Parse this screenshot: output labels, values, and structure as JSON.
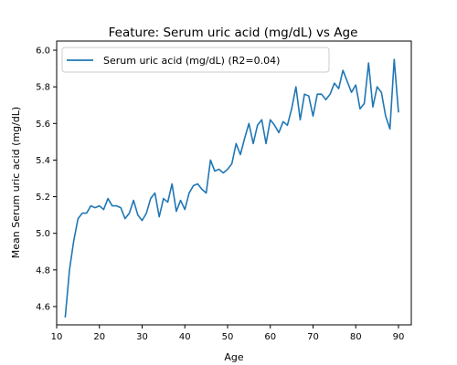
{
  "chart_data": {
    "type": "line",
    "title": "Feature: Serum uric acid (mg/dL) vs Age",
    "xlabel": "Age",
    "ylabel": "Mean Serum uric acid (mg/dL)",
    "xlim": [
      10,
      93
    ],
    "ylim": [
      4.5,
      6.05
    ],
    "xticks": [
      10,
      20,
      30,
      40,
      50,
      60,
      70,
      80,
      90
    ],
    "yticks": [
      4.6,
      4.8,
      5.0,
      5.2,
      5.4,
      5.6,
      5.8,
      6.0
    ],
    "grid": false,
    "legend_position": "top-left",
    "series": [
      {
        "name": "Serum uric acid (mg/dL) (R2=0.04)",
        "color": "#1f77b4",
        "x": [
          12,
          13,
          14,
          15,
          16,
          17,
          18,
          19,
          20,
          21,
          22,
          23,
          24,
          25,
          26,
          27,
          28,
          29,
          30,
          31,
          32,
          33,
          34,
          35,
          36,
          37,
          38,
          39,
          40,
          41,
          42,
          43,
          44,
          45,
          46,
          47,
          48,
          49,
          50,
          51,
          52,
          53,
          54,
          55,
          56,
          57,
          58,
          59,
          60,
          61,
          62,
          63,
          64,
          65,
          66,
          67,
          68,
          69,
          70,
          71,
          72,
          73,
          74,
          75,
          76,
          77,
          78,
          79,
          80,
          81,
          82,
          83,
          84,
          85,
          86,
          87,
          88,
          89,
          90
        ],
        "values": [
          4.54,
          4.8,
          4.96,
          5.08,
          5.11,
          5.11,
          5.15,
          5.14,
          5.15,
          5.13,
          5.19,
          5.15,
          5.15,
          5.14,
          5.08,
          5.11,
          5.18,
          5.1,
          5.07,
          5.11,
          5.19,
          5.22,
          5.09,
          5.19,
          5.17,
          5.27,
          5.12,
          5.18,
          5.13,
          5.22,
          5.26,
          5.27,
          5.24,
          5.22,
          5.4,
          5.34,
          5.35,
          5.33,
          5.35,
          5.38,
          5.49,
          5.43,
          5.52,
          5.6,
          5.49,
          5.59,
          5.62,
          5.49,
          5.62,
          5.59,
          5.55,
          5.61,
          5.59,
          5.68,
          5.8,
          5.62,
          5.76,
          5.75,
          5.64,
          5.76,
          5.76,
          5.73,
          5.76,
          5.82,
          5.79,
          5.89,
          5.83,
          5.77,
          5.81,
          5.68,
          5.71,
          5.93,
          5.69,
          5.8,
          5.77,
          5.64,
          5.57,
          5.95,
          5.66
        ]
      }
    ]
  }
}
